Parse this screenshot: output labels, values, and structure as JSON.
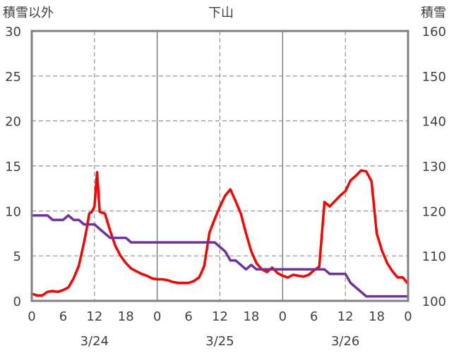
{
  "chart_data": {
    "type": "line",
    "title": "下山",
    "left_axis_label": "積雪以外",
    "right_axis_label": "積雪",
    "left_ylim": [
      0,
      30
    ],
    "left_ticks": [
      0,
      5,
      10,
      15,
      20,
      25,
      30
    ],
    "right_ylim": [
      100,
      160
    ],
    "right_ticks": [
      100,
      110,
      120,
      130,
      140,
      150,
      160
    ],
    "x_hours_range": [
      0,
      72
    ],
    "x_tick_labels": [
      "0",
      "6",
      "12",
      "18",
      "0",
      "6",
      "12",
      "18",
      "0",
      "6",
      "12",
      "18",
      "0"
    ],
    "date_labels": [
      "3/24",
      "3/25",
      "3/26"
    ],
    "grid": true,
    "series": [
      {
        "axis": "left",
        "color": "#ff0000",
        "x": [
          0,
          1,
          2,
          3,
          4,
          5,
          6,
          7,
          8,
          9,
          10,
          10.5,
          11,
          11.5,
          12,
          12.5,
          13,
          13.5,
          14,
          15,
          16,
          17,
          18,
          19,
          20,
          21,
          22,
          23,
          24,
          25,
          26,
          27,
          28,
          29,
          30,
          31,
          32,
          32.5,
          33,
          34,
          35,
          36,
          37,
          38,
          39,
          40,
          41,
          42,
          43,
          44,
          45,
          46,
          47,
          48,
          49,
          50,
          51,
          52,
          53,
          54,
          55,
          56,
          57,
          58,
          59,
          60,
          61,
          62,
          63,
          64,
          65,
          66,
          67,
          68,
          69,
          70,
          71,
          72
        ],
        "values": [
          0.8,
          0.6,
          0.6,
          1.0,
          1.1,
          1.0,
          1.2,
          1.5,
          2.5,
          3.9,
          6.5,
          8.0,
          9.7,
          9.9,
          10.5,
          14.3,
          9.9,
          9.8,
          9.7,
          7.8,
          6.1,
          5.0,
          4.2,
          3.6,
          3.3,
          3.0,
          2.8,
          2.5,
          2.4,
          2.4,
          2.3,
          2.1,
          2.0,
          2.0,
          2.0,
          2.2,
          2.6,
          3.2,
          3.9,
          7.6,
          9.1,
          10.5,
          11.7,
          12.4,
          11.1,
          9.7,
          7.5,
          5.5,
          4.2,
          3.5,
          3.2,
          3.7,
          3.1,
          2.8,
          2.6,
          2.9,
          2.8,
          2.7,
          2.9,
          3.4,
          3.8,
          11.0,
          10.5,
          11.1,
          11.7,
          12.2,
          13.4,
          13.9,
          14.5,
          14.4,
          13.3,
          7.5,
          5.6,
          4.2,
          3.3,
          2.6,
          2.6,
          1.9
        ]
      },
      {
        "axis": "right",
        "color": "#7030a0",
        "x": [
          0,
          1,
          2,
          3,
          4,
          5,
          6,
          7,
          8,
          9,
          10,
          11,
          12,
          13,
          14,
          15,
          16,
          17,
          18,
          19,
          20,
          21,
          22,
          23,
          24,
          25,
          26,
          27,
          28,
          29,
          30,
          31,
          32,
          33,
          34,
          35,
          36,
          37,
          38,
          39,
          40,
          41,
          42,
          43,
          44,
          45,
          46,
          47,
          48,
          49,
          50,
          51,
          52,
          53,
          54,
          55,
          56,
          57,
          58,
          59,
          60,
          61,
          62,
          63,
          64,
          65,
          66,
          67,
          68,
          69,
          70,
          71,
          72
        ],
        "values": [
          119,
          119,
          119,
          119,
          118,
          118,
          118,
          119,
          118,
          118,
          117,
          117,
          117,
          116,
          115,
          114,
          114,
          114,
          114,
          113,
          113,
          113,
          113,
          113,
          113,
          113,
          113,
          113,
          113,
          113,
          113,
          113,
          113,
          113,
          113,
          113,
          112,
          111,
          109,
          109,
          108,
          107,
          108,
          107,
          107,
          107,
          107,
          107,
          107,
          107,
          107,
          107,
          107,
          107,
          107,
          107,
          107,
          106,
          106,
          106,
          106,
          104,
          103,
          102,
          101,
          101,
          101,
          101,
          101,
          101,
          101,
          101,
          101
        ]
      }
    ]
  }
}
